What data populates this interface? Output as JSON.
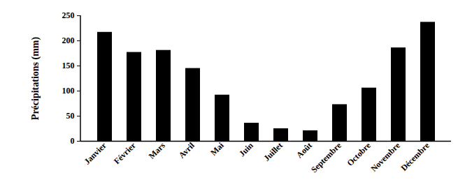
{
  "chart_data": {
    "type": "bar",
    "y_label": "Précipitations (mm)",
    "categories": [
      "Janvier",
      "Février",
      "Mars",
      "Avril",
      "Mai",
      "Juin",
      "Juillet",
      "Août",
      "Septembre",
      "Octobre",
      "Novembre",
      "Décembre"
    ],
    "values": [
      217,
      177,
      181,
      145,
      92,
      36,
      25,
      21,
      73,
      106,
      186,
      237
    ],
    "color": "#000000",
    "ylim": [
      0,
      250
    ],
    "yticks": [
      0,
      50,
      100,
      150,
      200,
      250
    ],
    "grid": false
  }
}
